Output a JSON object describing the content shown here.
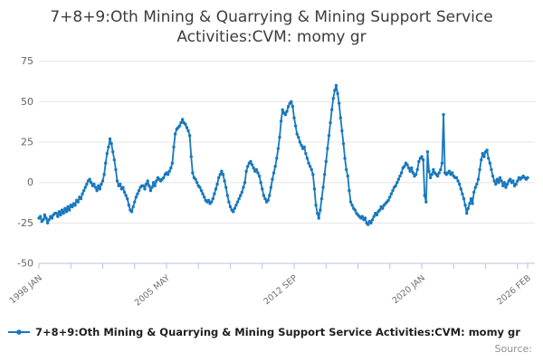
{
  "title": {
    "lines": [
      "7+8+9:Oth Mining & Quarrying & Mining Support Service",
      "Activities:CVM: momy gr"
    ]
  },
  "legend": {
    "label": "7+8+9:Oth Mining & Quarrying & Mining Support Service Activities:CVM: momy gr"
  },
  "footer": {
    "source_label": "Source:"
  },
  "colors": {
    "line": "#1878be",
    "grid": "#e4e4e4",
    "axis": "#b7c3d9",
    "y_tick_label": "#636363",
    "x_tick_label": "#6e6e6e",
    "title": "#3c3c3c",
    "legend_text": "#1f1f1f",
    "source_text": "#8f8f8f",
    "background": "#ffffff"
  },
  "chart_data": {
    "type": "line",
    "title": "7+8+9:Oth Mining & Quarrying & Mining Support Service Activities:CVM: momy gr",
    "x_start": "1998-01",
    "x_end": "2026-02",
    "frequency": "monthly",
    "ylim": [
      -50,
      75
    ],
    "yticks": [
      75,
      50,
      25,
      0,
      -25,
      -50
    ],
    "grid": "horizontal",
    "legend_position": "bottom-left",
    "minor_tick_step_months": 22,
    "x_tick_labels": [
      {
        "month": 0,
        "label": "1998 JAN"
      },
      {
        "month": 88,
        "label": "2005 MAY"
      },
      {
        "month": 176,
        "label": "2012 SEP"
      },
      {
        "month": 264,
        "label": "2020 JAN"
      },
      {
        "month": 337,
        "label": "2026 FEB"
      }
    ],
    "series": [
      {
        "name": "7+8+9:Oth Mining & Quarrying & Mining Support Service Activities:CVM: momy gr",
        "color": "#1878be",
        "marker": "circle",
        "values": [
          -22,
          -21,
          -24,
          -23,
          -20,
          -22,
          -25,
          -23,
          -21,
          -22,
          -20,
          -19,
          -19,
          -21,
          -18,
          -20,
          -17,
          -19,
          -16,
          -18,
          -15,
          -17,
          -14,
          -15,
          -13,
          -14,
          -11,
          -12,
          -9,
          -10,
          -7,
          -5,
          -3,
          -1,
          1,
          2,
          0,
          -2,
          -1,
          -3,
          -5,
          -2,
          -4,
          -1,
          1,
          5,
          12,
          18,
          22,
          27,
          24,
          19,
          14,
          8,
          1,
          -2,
          -1,
          -4,
          -3,
          -6,
          -8,
          -10,
          -14,
          -17,
          -18,
          -15,
          -12,
          -9,
          -7,
          -5,
          -3,
          -2,
          -2,
          -4,
          -1,
          1,
          -2,
          -5,
          -3,
          0,
          -2,
          1,
          3,
          2,
          1,
          2,
          3,
          5,
          6,
          5,
          7,
          9,
          12,
          22,
          30,
          33,
          34,
          35,
          37,
          39,
          37,
          36,
          34,
          32,
          29,
          16,
          6,
          3,
          2,
          0,
          -2,
          -3,
          -5,
          -7,
          -9,
          -11,
          -12,
          -11,
          -13,
          -12,
          -10,
          -7,
          -4,
          -1,
          3,
          5,
          7,
          5,
          1,
          -3,
          -8,
          -12,
          -15,
          -17,
          -18,
          -16,
          -14,
          -12,
          -10,
          -8,
          -6,
          -3,
          0,
          7,
          10,
          12,
          13,
          11,
          9,
          7,
          8,
          6,
          4,
          0,
          -4,
          -8,
          -10,
          -12,
          -11,
          -8,
          -3,
          2,
          6,
          10,
          15,
          21,
          28,
          38,
          45,
          43,
          42,
          44,
          47,
          49,
          50,
          47,
          40,
          35,
          30,
          28,
          25,
          23,
          21,
          22,
          18,
          15,
          12,
          10,
          8,
          5,
          -4,
          -14,
          -19,
          -22,
          -17,
          -10,
          -3,
          5,
          13,
          21,
          29,
          37,
          45,
          52,
          57,
          60,
          55,
          49,
          40,
          32,
          24,
          15,
          8,
          4,
          -5,
          -12,
          -14,
          -16,
          -17,
          -19,
          -20,
          -21,
          -22,
          -21,
          -23,
          -22,
          -25,
          -26,
          -24,
          -25,
          -23,
          -21,
          -19,
          -20,
          -18,
          -17,
          -15,
          -16,
          -14,
          -13,
          -12,
          -11,
          -9,
          -7,
          -5,
          -3,
          -2,
          0,
          2,
          4,
          6,
          9,
          10,
          12,
          11,
          9,
          7,
          9,
          6,
          4,
          5,
          8,
          13,
          15,
          16,
          14,
          -8,
          -12,
          19,
          7,
          3,
          5,
          8,
          6,
          5,
          4,
          6,
          8,
          12,
          42,
          6,
          5,
          6,
          7,
          5,
          6,
          4,
          3,
          3,
          1,
          -1,
          -4,
          -7,
          -10,
          -14,
          -19,
          -16,
          -13,
          -10,
          -13,
          -6,
          -3,
          -1,
          2,
          8,
          14,
          18,
          16,
          19,
          20,
          15,
          12,
          8,
          4,
          1,
          -1,
          2,
          0,
          3,
          1,
          -2,
          0,
          -3,
          -1,
          1,
          2,
          0,
          1,
          -2,
          -1,
          1,
          3,
          2,
          3,
          4,
          3,
          2,
          3
        ]
      }
    ]
  }
}
